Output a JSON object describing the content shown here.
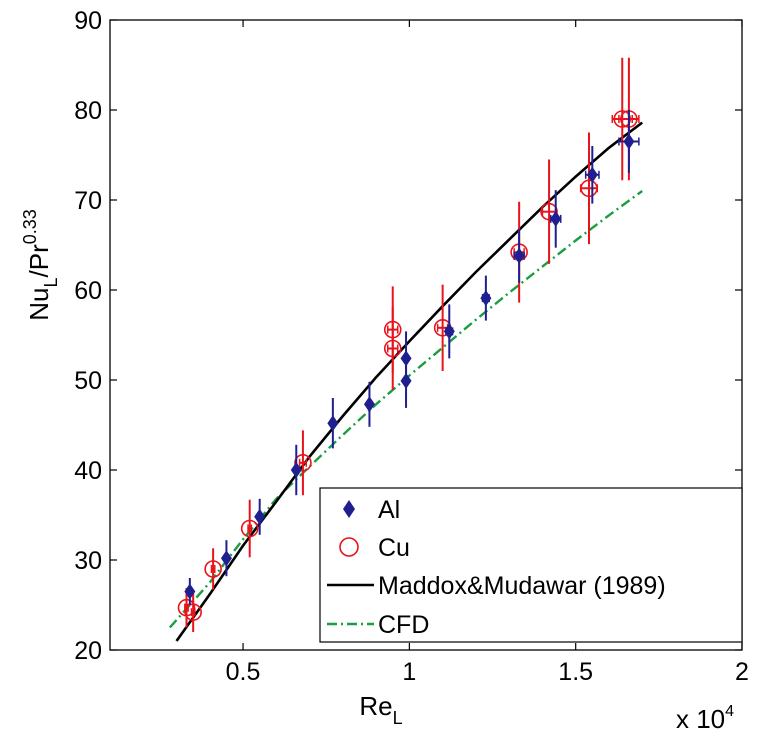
{
  "chart_data": {
    "type": "scatter",
    "title": "",
    "xlabel": {
      "base": "Re",
      "sub": "L"
    },
    "ylabel": {
      "base": "Nu",
      "sub": "L",
      "mid": "/Pr",
      "sup": "0.33"
    },
    "x_multiplier": {
      "text": "x 10",
      "sup": "4"
    },
    "xlim": [
      0.1,
      2.0
    ],
    "ylim": [
      20,
      90
    ],
    "xticks": [
      0.5,
      1,
      1.5,
      2
    ],
    "xtick_labels": [
      "0.5",
      "1",
      "1.5",
      "2"
    ],
    "yticks": [
      20,
      30,
      40,
      50,
      60,
      70,
      80,
      90
    ],
    "ytick_labels": [
      "20",
      "30",
      "40",
      "50",
      "60",
      "70",
      "80",
      "90"
    ],
    "grid": false,
    "legend_position": "bottom-right",
    "colors": {
      "Al": "#1f1f8f",
      "Cu": "#e8131b",
      "Maddox": "#000000",
      "CFD": "#1a9e3f"
    },
    "series": [
      {
        "name": "Al",
        "marker": "diamond",
        "points": [
          {
            "x": 0.34,
            "y": 26.5,
            "yerr": 1.5,
            "xerr": 0.005
          },
          {
            "x": 0.45,
            "y": 30.2,
            "yerr": 2.0,
            "xerr": 0.005
          },
          {
            "x": 0.55,
            "y": 34.8,
            "yerr": 2.0,
            "xerr": 0.005
          },
          {
            "x": 0.66,
            "y": 40.0,
            "yerr": 2.8,
            "xerr": 0.005
          },
          {
            "x": 0.77,
            "y": 45.2,
            "yerr": 2.8,
            "xerr": 0.005
          },
          {
            "x": 0.88,
            "y": 47.3,
            "yerr": 2.5,
            "xerr": 0.005
          },
          {
            "x": 0.99,
            "y": 49.9,
            "yerr": 3.0,
            "xerr": 0.005
          },
          {
            "x": 0.99,
            "y": 52.4,
            "yerr": 3.0,
            "xerr": 0.005
          },
          {
            "x": 1.12,
            "y": 55.4,
            "yerr": 3.0,
            "xerr": 0.01
          },
          {
            "x": 1.23,
            "y": 59.1,
            "yerr": 2.5,
            "xerr": 0.01
          },
          {
            "x": 1.33,
            "y": 63.8,
            "yerr": 3.0,
            "xerr": 0.015
          },
          {
            "x": 1.44,
            "y": 67.9,
            "yerr": 3.2,
            "xerr": 0.015
          },
          {
            "x": 1.55,
            "y": 72.8,
            "yerr": 3.2,
            "xerr": 0.02
          },
          {
            "x": 1.66,
            "y": 76.5,
            "yerr": 3.5,
            "xerr": 0.03
          }
        ]
      },
      {
        "name": "Cu",
        "marker": "circle",
        "points": [
          {
            "x": 0.33,
            "y": 24.7,
            "yerr": 2.2,
            "xerr": 0.005
          },
          {
            "x": 0.35,
            "y": 24.2,
            "yerr": 2.2,
            "xerr": 0.005
          },
          {
            "x": 0.41,
            "y": 29.0,
            "yerr": 2.3,
            "xerr": 0.005
          },
          {
            "x": 0.52,
            "y": 33.5,
            "yerr": 3.2,
            "xerr": 0.005
          },
          {
            "x": 0.68,
            "y": 40.8,
            "yerr": 3.6,
            "xerr": 0.01
          },
          {
            "x": 0.95,
            "y": 55.6,
            "yerr": 4.8,
            "xerr": 0.015
          },
          {
            "x": 0.95,
            "y": 53.5,
            "yerr": 4.6,
            "xerr": 0.015
          },
          {
            "x": 1.1,
            "y": 55.8,
            "yerr": 4.8,
            "xerr": 0.015
          },
          {
            "x": 1.33,
            "y": 64.2,
            "yerr": 5.6,
            "xerr": 0.015
          },
          {
            "x": 1.42,
            "y": 68.7,
            "yerr": 5.8,
            "xerr": 0.02
          },
          {
            "x": 1.54,
            "y": 71.3,
            "yerr": 6.2,
            "xerr": 0.025
          },
          {
            "x": 1.64,
            "y": 79.0,
            "yerr": 6.8,
            "xerr": 0.03
          },
          {
            "x": 1.66,
            "y": 79.0,
            "yerr": 6.8,
            "xerr": 0.03
          }
        ]
      },
      {
        "name": "Maddox&Mudawar (1989)",
        "line_style": "solid",
        "x": [
          0.3,
          0.4,
          0.5,
          0.6,
          0.7,
          0.8,
          0.9,
          1.0,
          1.1,
          1.2,
          1.3,
          1.4,
          1.5,
          1.6,
          1.7
        ],
        "y": [
          21.0,
          26.2,
          31.6,
          36.5,
          41.5,
          46.0,
          50.3,
          54.3,
          58.2,
          62.0,
          65.6,
          69.2,
          72.6,
          75.8,
          78.6
        ]
      },
      {
        "name": "CFD",
        "line_style": "dashdot",
        "x": [
          0.28,
          0.4,
          0.5,
          0.6,
          0.7,
          0.8,
          0.9,
          1.0,
          1.1,
          1.2,
          1.3,
          1.4,
          1.5,
          1.6,
          1.7
        ],
        "y": [
          22.5,
          27.5,
          32.3,
          36.8,
          40.4,
          43.9,
          47.3,
          50.5,
          53.6,
          56.7,
          59.7,
          62.6,
          65.5,
          68.3,
          71.0
        ]
      }
    ]
  }
}
